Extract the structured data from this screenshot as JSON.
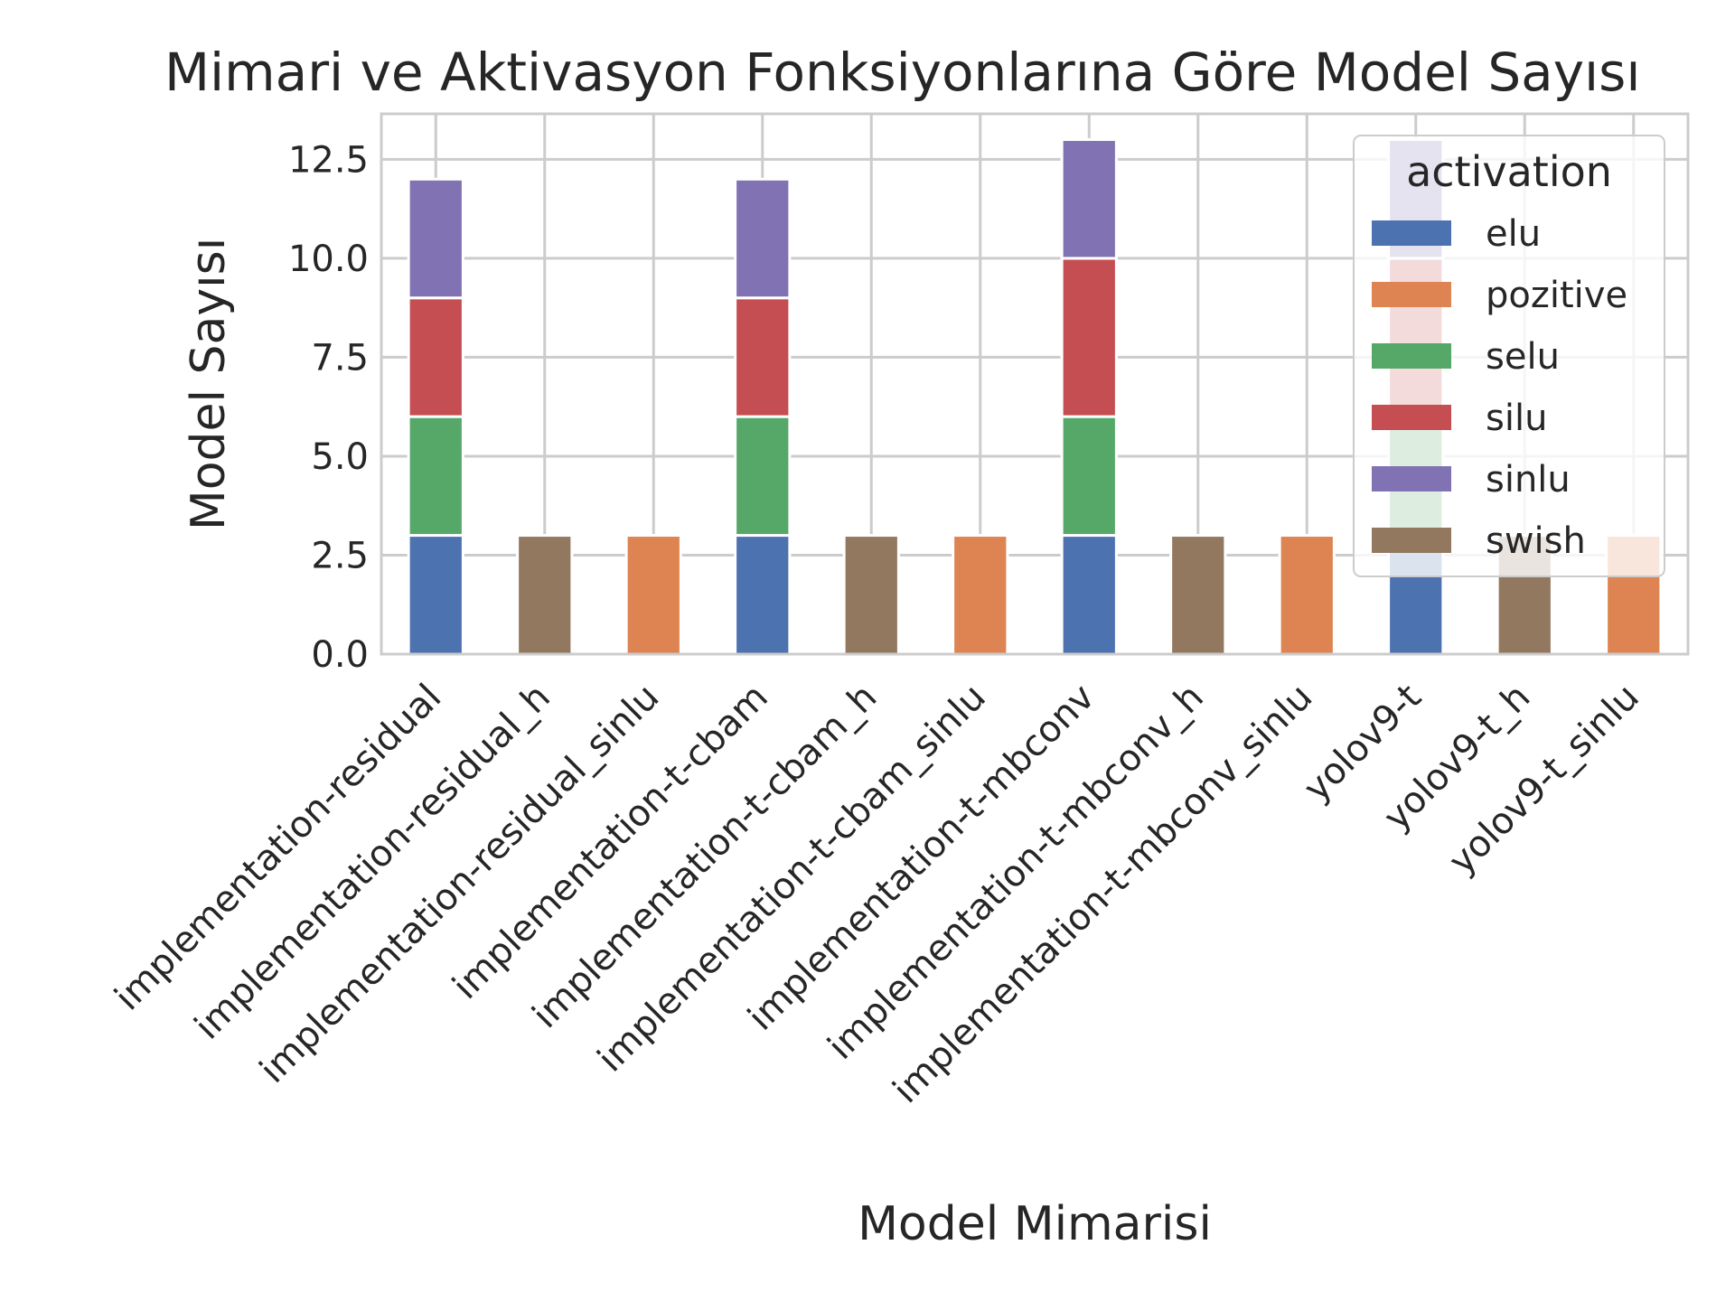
{
  "chart_data": {
    "type": "bar",
    "stacked": true,
    "title": "Mimari ve Aktivasyon Fonksiyonlarına Göre Model Sayısı",
    "xlabel": "Model Mimarisi",
    "ylabel": "Model Sayısı",
    "ylim": [
      0,
      13.65
    ],
    "yticks": [
      "0.0",
      "2.5",
      "5.0",
      "7.5",
      "10.0",
      "12.5"
    ],
    "grid": true,
    "legend": {
      "title": "activation",
      "placement": "top-right"
    },
    "categories": [
      "implementation-residual",
      "implementation-residual_h",
      "implementation-residual_sinlu",
      "implementation-t-cbam",
      "implementation-t-cbam_h",
      "implementation-t-cbam_sinlu",
      "implementation-t-mbconv",
      "implementation-t-mbconv_h",
      "implementation-t-mbconv_sinlu",
      "yolov9-t",
      "yolov9-t_h",
      "yolov9-t_sinlu"
    ],
    "series": [
      {
        "name": "elu",
        "color": "#4c72b0",
        "values": [
          3,
          0,
          0,
          3,
          0,
          0,
          3,
          0,
          0,
          3,
          0,
          0
        ]
      },
      {
        "name": "pozitive",
        "color": "#dd8452",
        "values": [
          0,
          0,
          3,
          0,
          0,
          3,
          0,
          0,
          3,
          0,
          0,
          3
        ]
      },
      {
        "name": "selu",
        "color": "#55a868",
        "values": [
          3,
          0,
          0,
          3,
          0,
          0,
          3,
          0,
          0,
          3,
          0,
          0
        ]
      },
      {
        "name": "silu",
        "color": "#c44e52",
        "values": [
          3,
          0,
          0,
          3,
          0,
          0,
          4,
          0,
          0,
          4,
          0,
          0
        ]
      },
      {
        "name": "sinlu",
        "color": "#8172b3",
        "values": [
          3,
          0,
          0,
          3,
          0,
          0,
          3,
          0,
          0,
          3,
          0,
          0
        ]
      },
      {
        "name": "swish",
        "color": "#937860",
        "values": [
          0,
          3,
          0,
          0,
          3,
          0,
          0,
          3,
          0,
          0,
          3,
          0
        ]
      }
    ]
  }
}
